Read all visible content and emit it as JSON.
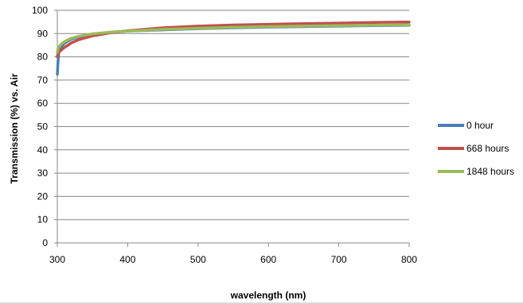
{
  "chart_data": {
    "type": "line",
    "title": "",
    "xlabel": "wavelength (nm)",
    "ylabel": "Transmission  (%) vs. Air",
    "xlim": [
      300,
      800
    ],
    "ylim": [
      0,
      100
    ],
    "xticks": [
      300,
      400,
      500,
      600,
      700,
      800
    ],
    "yticks": [
      0,
      10,
      20,
      30,
      40,
      50,
      60,
      70,
      80,
      90,
      100
    ],
    "grid": "horizontal",
    "legend": "right",
    "series": [
      {
        "name": "0 hour",
        "color": "#4a7ebb",
        "x": [
          300,
          301,
          302,
          304,
          306,
          310,
          315,
          320,
          330,
          340,
          350,
          375,
          400,
          450,
          500,
          550,
          600,
          650,
          700,
          750,
          800
        ],
        "values": [
          72.5,
          78,
          81.5,
          83.5,
          84.5,
          85.8,
          86.8,
          87.6,
          88.5,
          89.2,
          89.8,
          90.5,
          91.1,
          91.6,
          92.1,
          92.5,
          92.8,
          93.0,
          93.2,
          93.4,
          93.6
        ]
      },
      {
        "name": "668 hours",
        "color": "#c0504d",
        "x": [
          300,
          301,
          302,
          304,
          306,
          310,
          315,
          320,
          330,
          340,
          350,
          375,
          400,
          450,
          500,
          550,
          600,
          650,
          700,
          750,
          800
        ],
        "values": [
          80,
          81.5,
          82,
          82.5,
          83,
          84,
          85,
          86,
          87.3,
          88.2,
          89,
          90.3,
          91.2,
          92.5,
          93.2,
          93.7,
          94.0,
          94.3,
          94.5,
          94.8,
          95.0
        ]
      },
      {
        "name": "1848 hours",
        "color": "#9bbb59",
        "x": [
          300,
          301,
          302,
          304,
          306,
          310,
          315,
          320,
          330,
          340,
          350,
          375,
          400,
          450,
          500,
          550,
          600,
          650,
          700,
          750,
          800
        ],
        "values": [
          82,
          83.5,
          84.2,
          85,
          85.6,
          86.5,
          87.3,
          88,
          88.8,
          89.4,
          89.9,
          90.6,
          91.1,
          91.8,
          92.3,
          92.7,
          93.0,
          93.2,
          93.4,
          93.6,
          93.8
        ]
      }
    ]
  }
}
